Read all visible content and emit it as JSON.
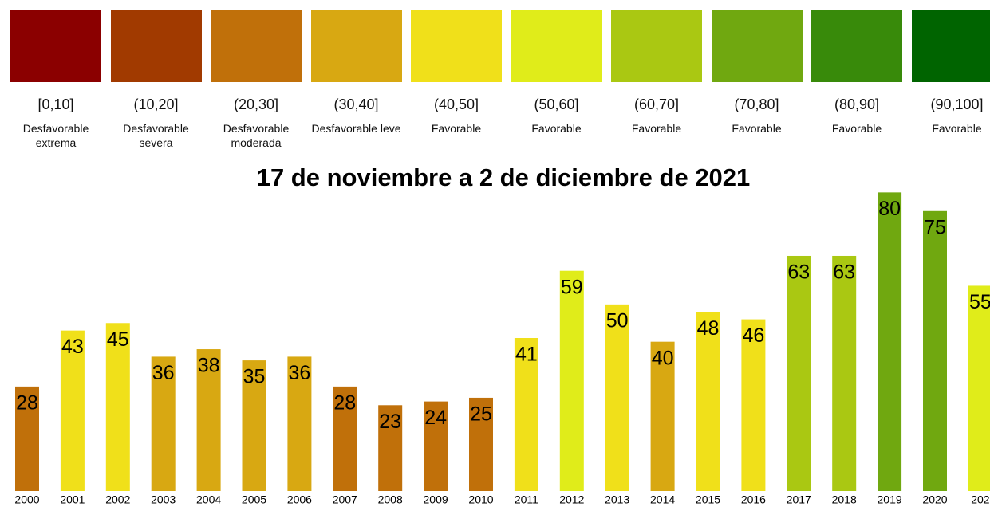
{
  "chart_data": {
    "type": "bar",
    "title": "17 de noviembre a 2 de diciembre de 2021",
    "legend": [
      {
        "range": "[0,10]",
        "label": "Desfavorable extrema",
        "color": "#8b0000"
      },
      {
        "range": "(10,20]",
        "label": "Desfavorable severa",
        "color": "#a13a00"
      },
      {
        "range": "(20,30]",
        "label": "Desfavorable moderada",
        "color": "#c0700a"
      },
      {
        "range": "(30,40]",
        "label": "Desfavorable leve",
        "color": "#d8a812"
      },
      {
        "range": "(40,50]",
        "label": "Favorable",
        "color": "#f0e01a"
      },
      {
        "range": "(50,60]",
        "label": "Favorable",
        "color": "#e0ec1a"
      },
      {
        "range": "(60,70]",
        "label": "Favorable",
        "color": "#aac812"
      },
      {
        "range": "(70,80]",
        "label": "Favorable",
        "color": "#70a810"
      },
      {
        "range": "(80,90]",
        "label": "Favorable",
        "color": "#388a0a"
      },
      {
        "range": "(90,100]",
        "label": "Favorable",
        "color": "#006400"
      }
    ],
    "categories": [
      "2000",
      "2001",
      "2002",
      "2003",
      "2004",
      "2005",
      "2006",
      "2007",
      "2008",
      "2009",
      "2010",
      "2011",
      "2012",
      "2013",
      "2014",
      "2015",
      "2016",
      "2017",
      "2018",
      "2019",
      "2020",
      "202"
    ],
    "values": [
      28,
      43,
      45,
      36,
      38,
      35,
      36,
      28,
      23,
      24,
      25,
      41,
      59,
      50,
      40,
      48,
      46,
      63,
      63,
      80,
      75,
      55
    ],
    "colors": [
      "#c0700a",
      "#f0e01a",
      "#f0e01a",
      "#d8a812",
      "#d8a812",
      "#d8a812",
      "#d8a812",
      "#c0700a",
      "#c0700a",
      "#c0700a",
      "#c0700a",
      "#f0e01a",
      "#e0ec1a",
      "#f0e01a",
      "#d8a812",
      "#f0e01a",
      "#f0e01a",
      "#aac812",
      "#aac812",
      "#70a810",
      "#70a810",
      "#e0ec1a"
    ],
    "ylim": [
      0,
      82
    ]
  }
}
